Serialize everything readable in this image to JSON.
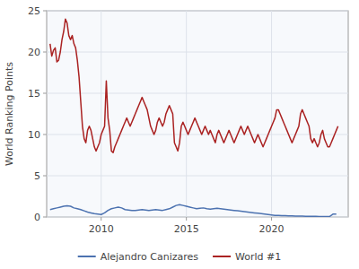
{
  "chart_data": {
    "type": "line",
    "ylabel": "World Ranking Points",
    "xlim": [
      2006.8,
      2024.5
    ],
    "ylim": [
      0,
      25
    ],
    "xticks": [
      2010,
      2015,
      2020
    ],
    "yticks": [
      0,
      5,
      10,
      15,
      20,
      25
    ],
    "grid": true,
    "legend": "bottom",
    "series": [
      {
        "name": "Alejandro Canizares",
        "color": "#4c72b0",
        "x": [
          2007.0,
          2007.2,
          2007.4,
          2007.6,
          2007.8,
          2008.0,
          2008.2,
          2008.4,
          2008.6,
          2008.8,
          2009.0,
          2009.2,
          2009.4,
          2009.6,
          2009.8,
          2010.0,
          2010.2,
          2010.4,
          2010.6,
          2010.8,
          2011.0,
          2011.2,
          2011.4,
          2011.6,
          2011.8,
          2012.0,
          2012.2,
          2012.4,
          2012.6,
          2012.8,
          2013.0,
          2013.2,
          2013.4,
          2013.6,
          2013.8,
          2014.0,
          2014.2,
          2014.4,
          2014.6,
          2014.8,
          2015.0,
          2015.2,
          2015.4,
          2015.6,
          2015.8,
          2016.0,
          2016.2,
          2016.4,
          2016.6,
          2016.8,
          2017.0,
          2017.2,
          2017.4,
          2017.6,
          2017.8,
          2018.0,
          2018.2,
          2018.4,
          2018.6,
          2018.8,
          2019.0,
          2019.2,
          2019.4,
          2019.6,
          2019.8,
          2020.0,
          2020.2,
          2020.4,
          2020.6,
          2020.8,
          2021.0,
          2021.2,
          2021.4,
          2021.6,
          2021.8,
          2022.0,
          2022.2,
          2022.4,
          2022.6,
          2022.8,
          2023.0,
          2023.2,
          2023.4,
          2023.6,
          2023.8
        ],
        "values": [
          0.9,
          1.0,
          1.1,
          1.2,
          1.3,
          1.35,
          1.3,
          1.1,
          1.0,
          0.9,
          0.75,
          0.6,
          0.5,
          0.4,
          0.35,
          0.3,
          0.5,
          0.8,
          1.0,
          1.1,
          1.2,
          1.1,
          0.9,
          0.85,
          0.8,
          0.8,
          0.85,
          0.9,
          0.85,
          0.8,
          0.85,
          0.9,
          0.85,
          0.8,
          0.9,
          1.0,
          1.2,
          1.4,
          1.5,
          1.4,
          1.3,
          1.2,
          1.1,
          1.0,
          1.05,
          1.1,
          1.0,
          0.95,
          1.0,
          1.05,
          1.0,
          0.95,
          0.9,
          0.85,
          0.8,
          0.75,
          0.7,
          0.65,
          0.6,
          0.55,
          0.5,
          0.45,
          0.4,
          0.35,
          0.3,
          0.25,
          0.2,
          0.18,
          0.16,
          0.15,
          0.14,
          0.13,
          0.12,
          0.11,
          0.1,
          0.09,
          0.08,
          0.07,
          0.07,
          0.06,
          0.06,
          0.05,
          0.05,
          0.35,
          0.35
        ]
      },
      {
        "name": "World #1",
        "color": "#aa2222",
        "x": [
          2007.0,
          2007.1,
          2007.2,
          2007.3,
          2007.4,
          2007.5,
          2007.6,
          2007.7,
          2007.8,
          2007.9,
          2008.0,
          2008.1,
          2008.2,
          2008.3,
          2008.4,
          2008.5,
          2008.6,
          2008.7,
          2008.8,
          2008.9,
          2009.0,
          2009.1,
          2009.2,
          2009.3,
          2009.4,
          2009.5,
          2009.6,
          2009.7,
          2009.8,
          2009.9,
          2010.0,
          2010.1,
          2010.2,
          2010.3,
          2010.4,
          2010.5,
          2010.6,
          2010.7,
          2010.8,
          2010.9,
          2011.0,
          2011.1,
          2011.2,
          2011.3,
          2011.4,
          2011.5,
          2011.6,
          2011.7,
          2011.8,
          2011.9,
          2012.0,
          2012.1,
          2012.2,
          2012.3,
          2012.4,
          2012.5,
          2012.6,
          2012.7,
          2012.8,
          2012.9,
          2013.0,
          2013.1,
          2013.2,
          2013.3,
          2013.4,
          2013.5,
          2013.6,
          2013.7,
          2013.8,
          2013.9,
          2014.0,
          2014.1,
          2014.2,
          2014.3,
          2014.4,
          2014.5,
          2014.6,
          2014.7,
          2014.8,
          2014.9,
          2015.0,
          2015.1,
          2015.2,
          2015.3,
          2015.4,
          2015.5,
          2015.6,
          2015.7,
          2015.8,
          2015.9,
          2016.0,
          2016.1,
          2016.2,
          2016.3,
          2016.4,
          2016.5,
          2016.6,
          2016.7,
          2016.8,
          2016.9,
          2017.0,
          2017.1,
          2017.2,
          2017.3,
          2017.4,
          2017.5,
          2017.6,
          2017.7,
          2017.8,
          2017.9,
          2018.0,
          2018.1,
          2018.2,
          2018.3,
          2018.4,
          2018.5,
          2018.6,
          2018.7,
          2018.8,
          2018.9,
          2019.0,
          2019.1,
          2019.2,
          2019.3,
          2019.4,
          2019.5,
          2019.6,
          2019.7,
          2019.8,
          2019.9,
          2020.0,
          2020.1,
          2020.2,
          2020.3,
          2020.4,
          2020.5,
          2020.6,
          2020.7,
          2020.8,
          2020.9,
          2021.0,
          2021.1,
          2021.2,
          2021.3,
          2021.4,
          2021.5,
          2021.6,
          2021.7,
          2021.8,
          2021.9,
          2022.0,
          2022.1,
          2022.2,
          2022.3,
          2022.4,
          2022.5,
          2022.6,
          2022.7,
          2022.8,
          2022.9,
          2023.0,
          2023.1,
          2023.2,
          2023.3,
          2023.4,
          2023.5,
          2023.6,
          2023.7,
          2023.8,
          2023.9
        ],
        "values": [
          21.0,
          19.5,
          20.2,
          20.5,
          18.8,
          19.0,
          20.0,
          21.5,
          22.5,
          24.0,
          23.5,
          22.0,
          21.5,
          22.0,
          21.0,
          20.5,
          19.0,
          17.0,
          14.0,
          11.0,
          9.5,
          9.0,
          10.5,
          11.0,
          10.5,
          9.5,
          8.5,
          8.0,
          8.5,
          9.0,
          10.0,
          10.5,
          11.0,
          16.5,
          12.0,
          10.5,
          8.0,
          7.8,
          8.5,
          9.0,
          9.5,
          10.0,
          10.5,
          11.0,
          11.5,
          12.0,
          11.5,
          11.0,
          11.5,
          12.0,
          12.5,
          13.0,
          13.5,
          14.0,
          14.5,
          14.0,
          13.5,
          13.0,
          12.0,
          11.0,
          10.5,
          10.0,
          10.5,
          11.5,
          12.0,
          11.5,
          11.0,
          11.5,
          12.5,
          13.0,
          13.5,
          13.0,
          12.5,
          9.0,
          8.5,
          8.0,
          9.0,
          11.0,
          11.5,
          11.0,
          10.5,
          10.0,
          10.5,
          11.0,
          11.5,
          12.0,
          11.5,
          11.0,
          10.5,
          10.0,
          10.5,
          11.0,
          10.5,
          10.0,
          10.5,
          10.0,
          9.5,
          9.0,
          10.0,
          10.5,
          10.0,
          9.5,
          9.0,
          9.5,
          10.0,
          10.5,
          10.0,
          9.5,
          9.0,
          9.5,
          10.0,
          10.5,
          11.0,
          10.5,
          10.0,
          10.5,
          11.0,
          10.5,
          10.0,
          9.5,
          9.0,
          9.5,
          10.0,
          9.5,
          9.0,
          8.5,
          9.0,
          9.5,
          10.0,
          10.5,
          11.0,
          11.5,
          12.0,
          13.0,
          13.0,
          12.5,
          12.0,
          11.5,
          11.0,
          10.5,
          10.0,
          9.5,
          9.0,
          9.5,
          10.0,
          10.5,
          11.0,
          12.5,
          13.0,
          12.5,
          12.0,
          11.5,
          11.0,
          9.5,
          9.0,
          9.5,
          9.0,
          8.5,
          9.0,
          10.0,
          10.5,
          9.5,
          9.0,
          8.5,
          8.5,
          9.0,
          9.5,
          10.0,
          10.5,
          11.0
        ]
      }
    ]
  }
}
